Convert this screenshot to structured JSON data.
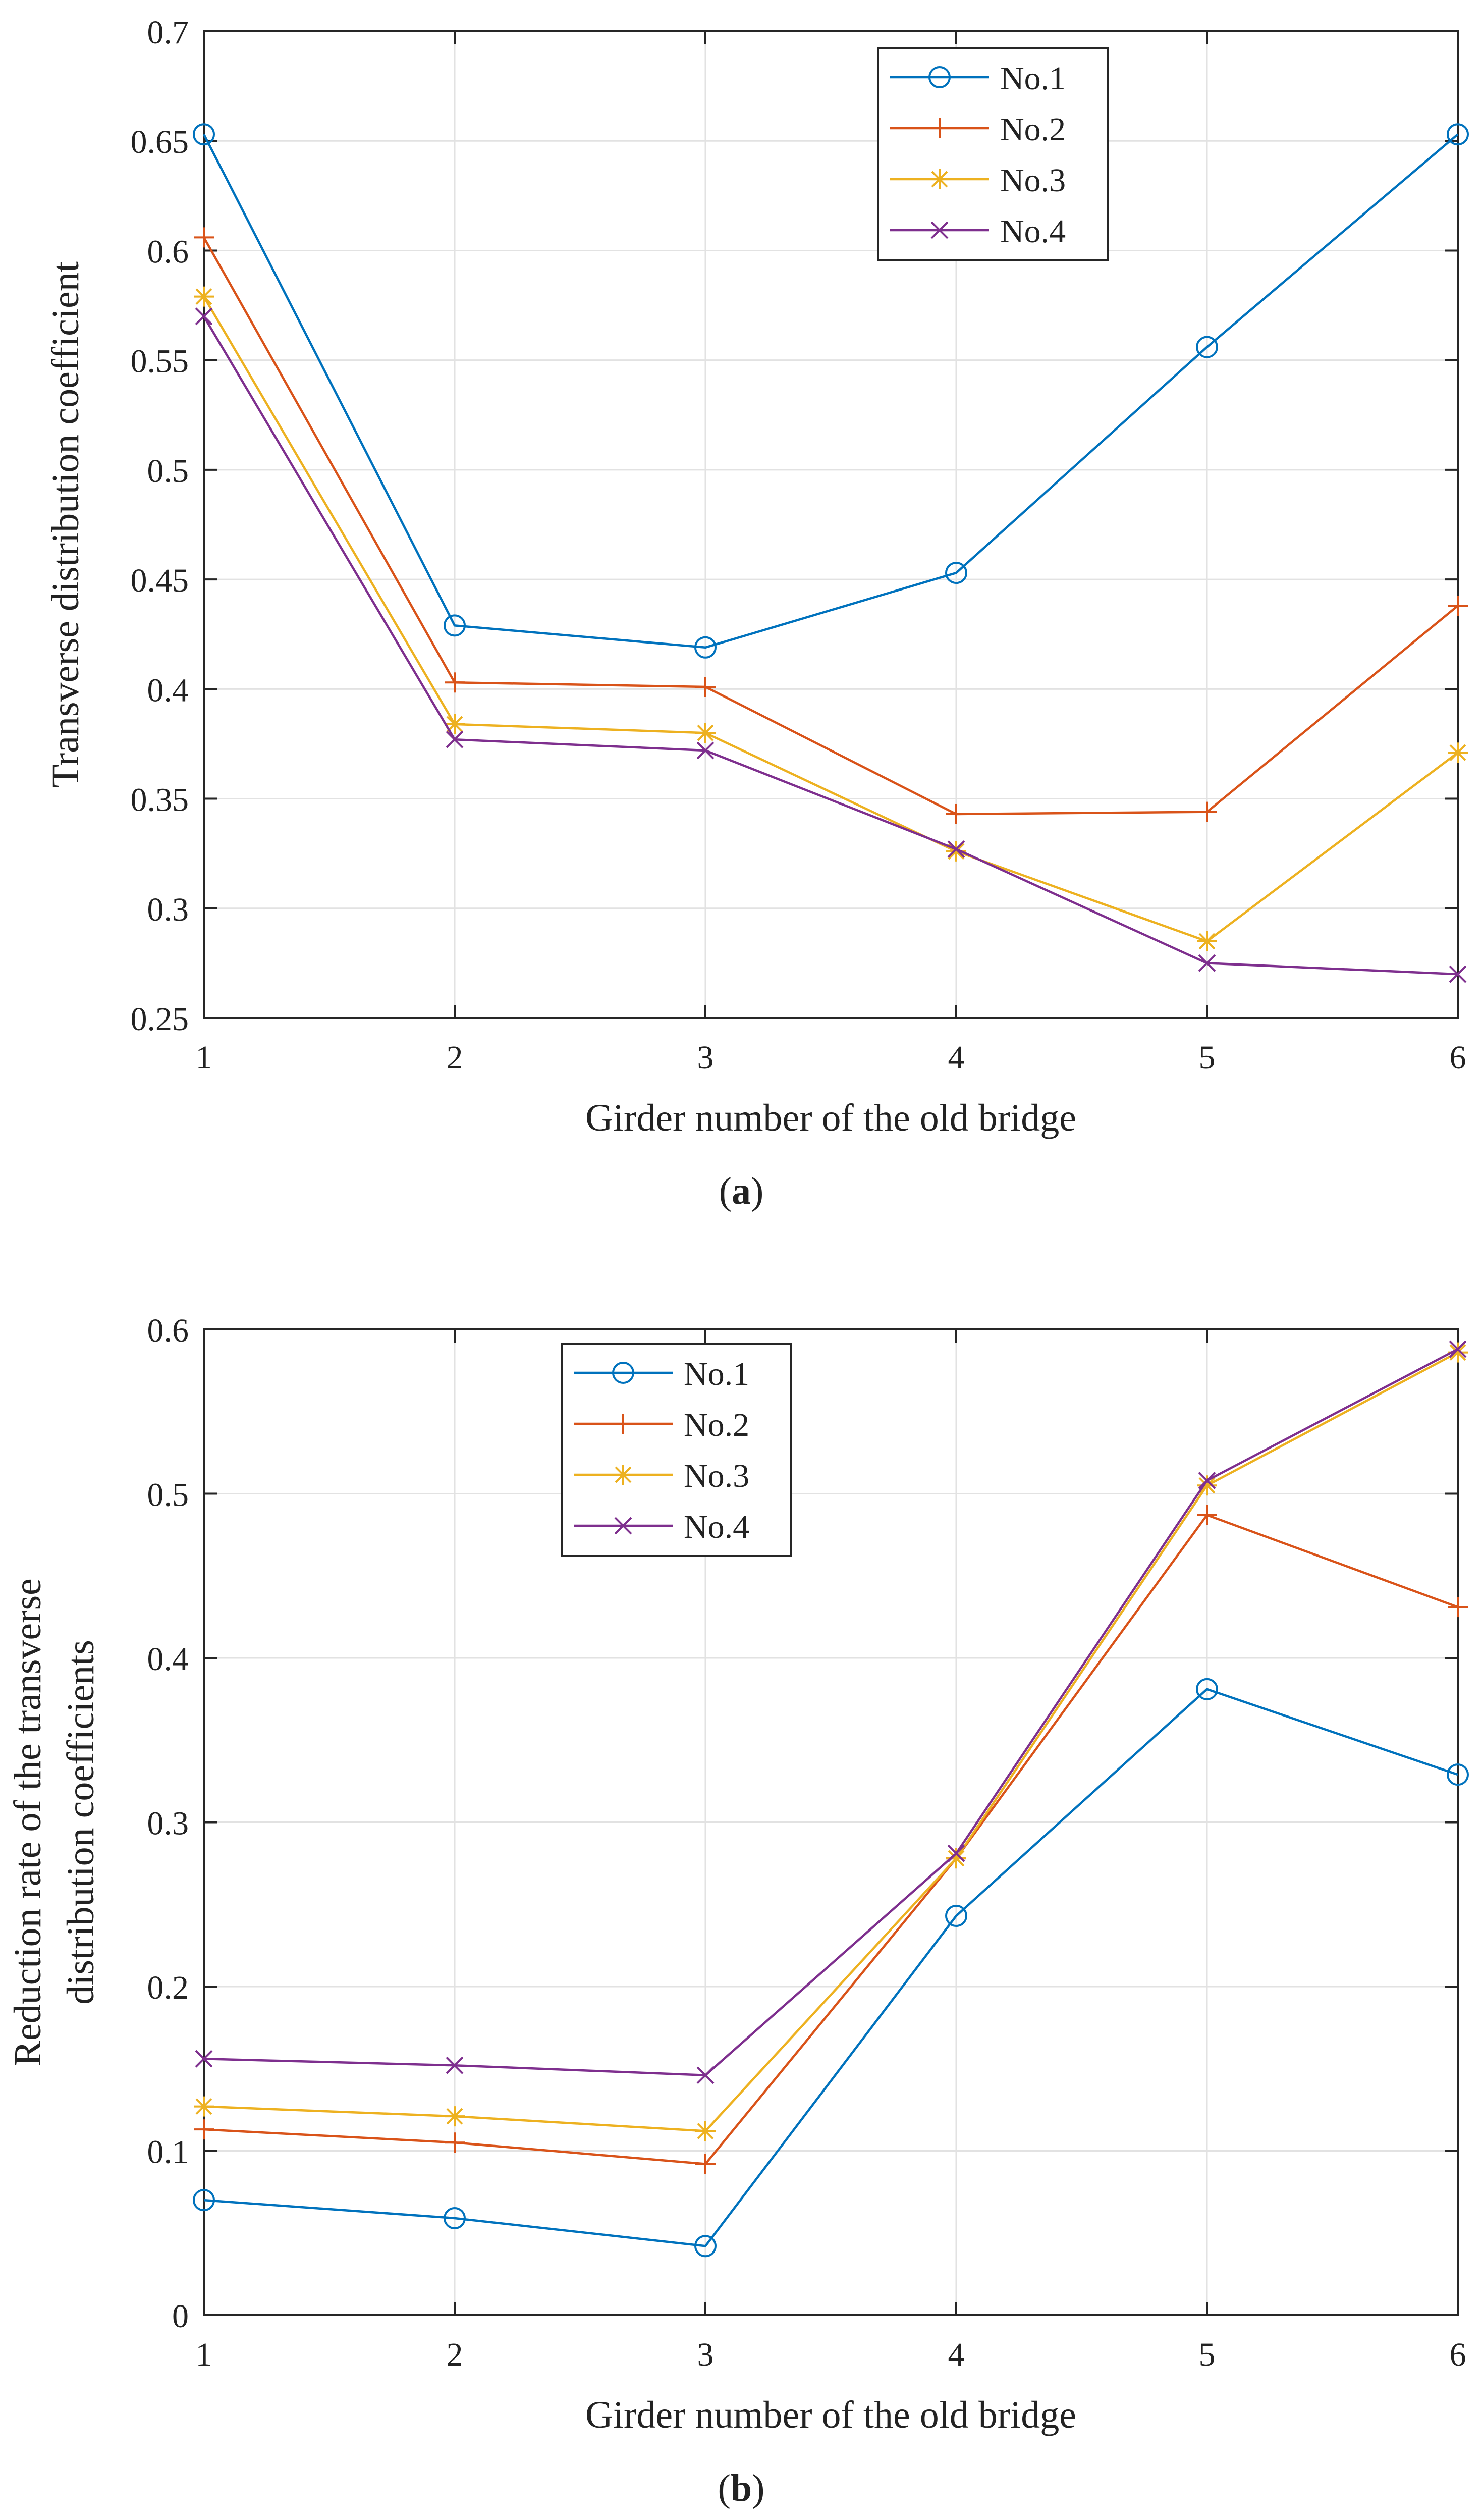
{
  "chart_data": [
    {
      "panel_label": "a",
      "type": "line",
      "xlabel": "Girder number of the old bridge",
      "ylabel": "Transverse distribution coefficient",
      "x": [
        1,
        2,
        3,
        4,
        5,
        6
      ],
      "xlim": [
        1,
        6
      ],
      "ylim": [
        0.25,
        0.7
      ],
      "xticks": [
        "1",
        "2",
        "3",
        "4",
        "5",
        "6"
      ],
      "yticks": [
        0.25,
        0.3,
        0.35,
        0.4,
        0.45,
        0.5,
        0.55,
        0.6,
        0.65,
        0.7
      ],
      "ytick_labels": [
        "0.25",
        "0.3",
        "0.35",
        "0.4",
        "0.45",
        "0.5",
        "0.55",
        "0.6",
        "0.65",
        "0.7"
      ],
      "grid": true,
      "legend_position": "top-right",
      "series": [
        {
          "name": "No.1",
          "marker": "circle",
          "color": "#0072BD",
          "values": [
            0.653,
            0.429,
            0.419,
            0.453,
            0.556,
            0.653
          ]
        },
        {
          "name": "No.2",
          "marker": "plus",
          "color": "#D95319",
          "values": [
            0.606,
            0.403,
            0.401,
            0.343,
            0.344,
            0.438
          ]
        },
        {
          "name": "No.3",
          "marker": "asterisk",
          "color": "#EDB120",
          "values": [
            0.579,
            0.384,
            0.38,
            0.326,
            0.285,
            0.371
          ]
        },
        {
          "name": "No.4",
          "marker": "x",
          "color": "#7E2F8E",
          "values": [
            0.57,
            0.377,
            0.372,
            0.327,
            0.275,
            0.27
          ]
        }
      ]
    },
    {
      "panel_label": "b",
      "type": "line",
      "xlabel": "Girder number of the old bridge",
      "ylabel_lines": [
        "Reduction rate of the transverse",
        "distribution coefficients"
      ],
      "x": [
        1,
        2,
        3,
        4,
        5,
        6
      ],
      "xlim": [
        1,
        6
      ],
      "ylim": [
        0,
        0.6
      ],
      "xticks": [
        "1",
        "2",
        "3",
        "4",
        "5",
        "6"
      ],
      "yticks": [
        0,
        0.1,
        0.2,
        0.3,
        0.4,
        0.5,
        0.6
      ],
      "ytick_labels": [
        "0",
        "0.1",
        "0.2",
        "0.3",
        "0.4",
        "0.5",
        "0.6"
      ],
      "grid": true,
      "legend_position": "top-left",
      "series": [
        {
          "name": "No.1",
          "marker": "circle",
          "color": "#0072BD",
          "values": [
            0.07,
            0.059,
            0.042,
            0.243,
            0.381,
            0.329
          ]
        },
        {
          "name": "No.2",
          "marker": "plus",
          "color": "#D95319",
          "values": [
            0.113,
            0.105,
            0.092,
            0.278,
            0.487,
            0.431
          ]
        },
        {
          "name": "No.3",
          "marker": "asterisk",
          "color": "#EDB120",
          "values": [
            0.127,
            0.121,
            0.112,
            0.278,
            0.505,
            0.586
          ]
        },
        {
          "name": "No.4",
          "marker": "x",
          "color": "#7E2F8E",
          "values": [
            0.156,
            0.152,
            0.146,
            0.281,
            0.508,
            0.588
          ]
        }
      ]
    }
  ]
}
